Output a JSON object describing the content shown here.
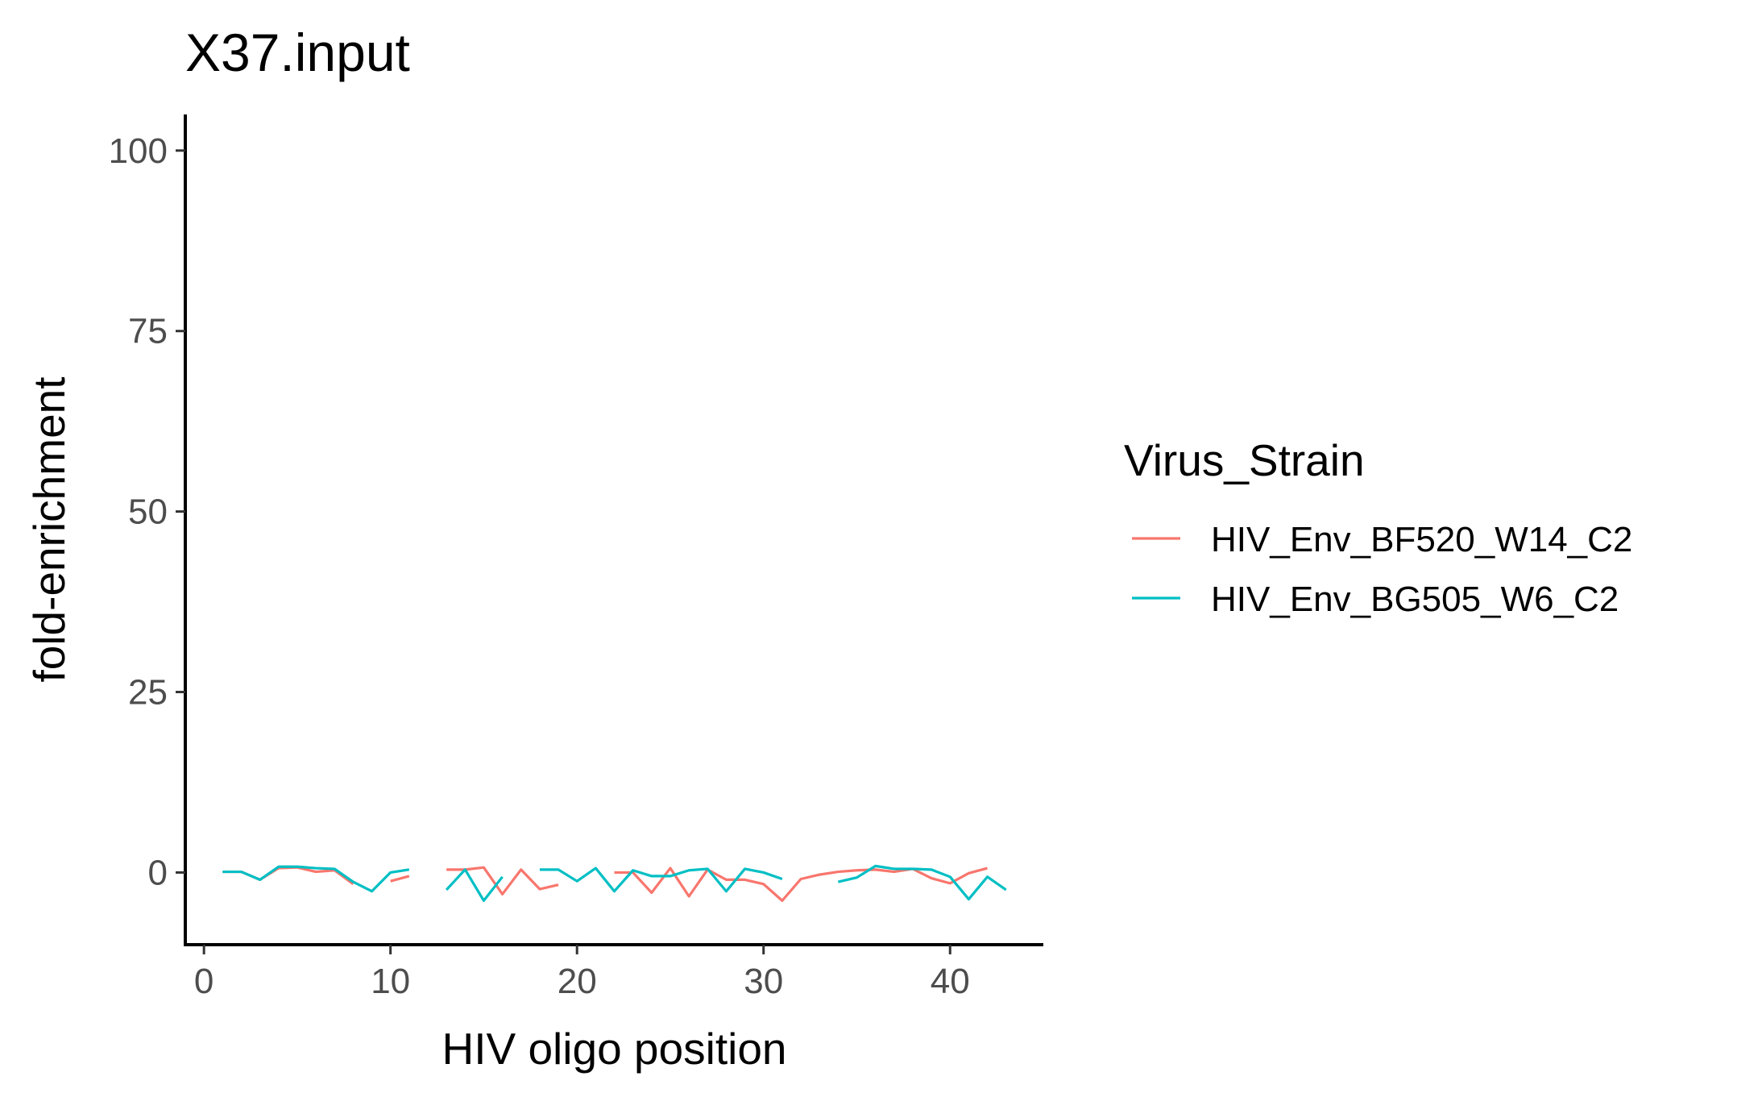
{
  "chart_data": {
    "type": "line",
    "title": "X37.input",
    "xlabel": "HIV oligo position",
    "ylabel": "fold-enrichment",
    "xlim": [
      -1,
      45
    ],
    "ylim": [
      -10,
      105
    ],
    "xticks": [
      0,
      10,
      20,
      30,
      40
    ],
    "yticks": [
      0,
      25,
      50,
      75,
      100
    ],
    "grid": false,
    "legend": {
      "title": "Virus_Strain",
      "placement": "right"
    },
    "series": [
      {
        "name": "HIV_Env_BF520_W14_C2",
        "color": "#F8766D",
        "points": [
          [
            1,
            0.1
          ],
          [
            2,
            0.1
          ],
          [
            3,
            -1.0
          ],
          [
            4,
            0.6
          ],
          [
            5,
            0.7
          ],
          [
            6,
            0.1
          ],
          [
            7,
            0.3
          ],
          [
            8,
            -1.6
          ],
          [
            9,
            null
          ],
          [
            10,
            -1.2
          ],
          [
            11,
            -0.5
          ],
          [
            12,
            null
          ],
          [
            13,
            0.4
          ],
          [
            14,
            0.4
          ],
          [
            15,
            0.7
          ],
          [
            16,
            -3.0
          ],
          [
            17,
            0.4
          ],
          [
            18,
            -2.3
          ],
          [
            19,
            -1.7
          ],
          [
            20,
            null
          ],
          [
            21,
            null
          ],
          [
            22,
            0.0
          ],
          [
            23,
            0.0
          ],
          [
            24,
            -2.8
          ],
          [
            25,
            0.6
          ],
          [
            26,
            -3.3
          ],
          [
            27,
            0.4
          ],
          [
            28,
            -1.0
          ],
          [
            29,
            -1.0
          ],
          [
            30,
            -1.6
          ],
          [
            31,
            -3.9
          ],
          [
            32,
            -0.9
          ],
          [
            33,
            -0.3
          ],
          [
            34,
            0.1
          ],
          [
            35,
            0.3
          ],
          [
            36,
            0.4
          ],
          [
            37,
            0.1
          ],
          [
            38,
            0.5
          ],
          [
            39,
            -0.8
          ],
          [
            40,
            -1.5
          ],
          [
            41,
            -0.1
          ],
          [
            42,
            0.6
          ],
          [
            43,
            null
          ]
        ]
      },
      {
        "name": "HIV_Env_BG505_W6_C2",
        "color": "#00BFC4",
        "points": [
          [
            1,
            0.1
          ],
          [
            2,
            0.1
          ],
          [
            3,
            -1.0
          ],
          [
            4,
            0.8
          ],
          [
            5,
            0.8
          ],
          [
            6,
            0.6
          ],
          [
            7,
            0.5
          ],
          [
            8,
            -1.3
          ],
          [
            9,
            -2.6
          ],
          [
            10,
            0.0
          ],
          [
            11,
            0.4
          ],
          [
            12,
            null
          ],
          [
            13,
            -2.4
          ],
          [
            14,
            0.4
          ],
          [
            15,
            -3.9
          ],
          [
            16,
            -0.6
          ],
          [
            17,
            null
          ],
          [
            18,
            0.4
          ],
          [
            19,
            0.4
          ],
          [
            20,
            -1.2
          ],
          [
            21,
            0.6
          ],
          [
            22,
            -2.6
          ],
          [
            23,
            0.3
          ],
          [
            24,
            -0.5
          ],
          [
            25,
            -0.5
          ],
          [
            26,
            0.3
          ],
          [
            27,
            0.5
          ],
          [
            28,
            -2.6
          ],
          [
            29,
            0.5
          ],
          [
            30,
            0.0
          ],
          [
            31,
            -0.9
          ],
          [
            32,
            null
          ],
          [
            33,
            null
          ],
          [
            34,
            -1.3
          ],
          [
            35,
            -0.7
          ],
          [
            36,
            0.9
          ],
          [
            37,
            0.5
          ],
          [
            38,
            0.5
          ],
          [
            39,
            0.4
          ],
          [
            40,
            -0.6
          ],
          [
            41,
            -3.7
          ],
          [
            42,
            -0.6
          ],
          [
            43,
            -2.4
          ]
        ]
      }
    ]
  }
}
